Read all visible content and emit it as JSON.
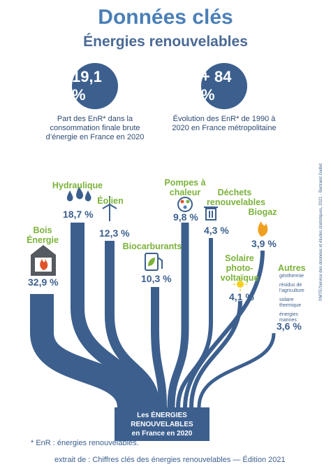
{
  "header": {
    "title": "Données clés",
    "subtitle": "Énergies renouvelables"
  },
  "key_figures": [
    {
      "value": "19,1 %",
      "description": "Part des EnR* dans la consommation finale brute d’énergie en France en 2020"
    },
    {
      "value": "+ 84 %",
      "description": "Évolution des EnR* de 1990 à 2020 en France métropolitaine"
    }
  ],
  "sources": [
    {
      "id": "bois",
      "label_lines": [
        "Bois",
        "Énergie"
      ],
      "value": "32,9 %",
      "share": 32.9,
      "icon": "stove-fire-icon"
    },
    {
      "id": "hydraulique",
      "label_lines": [
        "Hydraulique"
      ],
      "value": "18,7 %",
      "share": 18.7,
      "icon": "water-drops-icon"
    },
    {
      "id": "eolien",
      "label_lines": [
        "Éolien"
      ],
      "value": "12,3 %",
      "share": 12.3,
      "icon": "wind-turbine-icon"
    },
    {
      "id": "biocarburants",
      "label_lines": [
        "Biocarburants"
      ],
      "value": "10,3 %",
      "share": 10.3,
      "icon": "fuel-pump-leaf-icon"
    },
    {
      "id": "pompes",
      "label_lines": [
        "Pompes à",
        "chaleur"
      ],
      "value": "9,8 %",
      "share": 9.8,
      "icon": "heat-pump-icon"
    },
    {
      "id": "dechets",
      "label_lines": [
        "Déchets",
        "renouvelables"
      ],
      "value": "4,3 %",
      "share": 4.3,
      "icon": "trash-bin-icon"
    },
    {
      "id": "biogaz",
      "label_lines": [
        "Biogaz"
      ],
      "value": "3,9 %",
      "share": 3.9,
      "icon": "flame-icon"
    },
    {
      "id": "solaire",
      "label_lines": [
        "Solaire",
        "photo-",
        "voltaïque"
      ],
      "value": "4,1 %",
      "share": 4.1,
      "icon": "sun-icon"
    },
    {
      "id": "autres",
      "label_lines": [
        "Autres"
      ],
      "value": "3,6 %",
      "share": 3.6,
      "icon": "",
      "sub_items": [
        "géothermie",
        "résidus de l’agriculture",
        "solaire thermique",
        "énergies marines"
      ]
    }
  ],
  "total": {
    "lines": [
      "Les ÉNERGIES",
      "RENOUVELABLES",
      "en France en 2020"
    ]
  },
  "footnote": "* EnR : énergies renouvelables.",
  "source_line": "extrait de : Chiffres clés des énergies renouvelables — Édition 2021",
  "credit": "©MTE/Service des données et études statistiques, 2021 - Bertrand Gaillet",
  "colors": {
    "flow": "#3c5f8e",
    "accent_green": "#7bb23a",
    "title_blue": "#4a7fb7",
    "flame": "#f0a020",
    "sun": "#f5d020"
  }
}
